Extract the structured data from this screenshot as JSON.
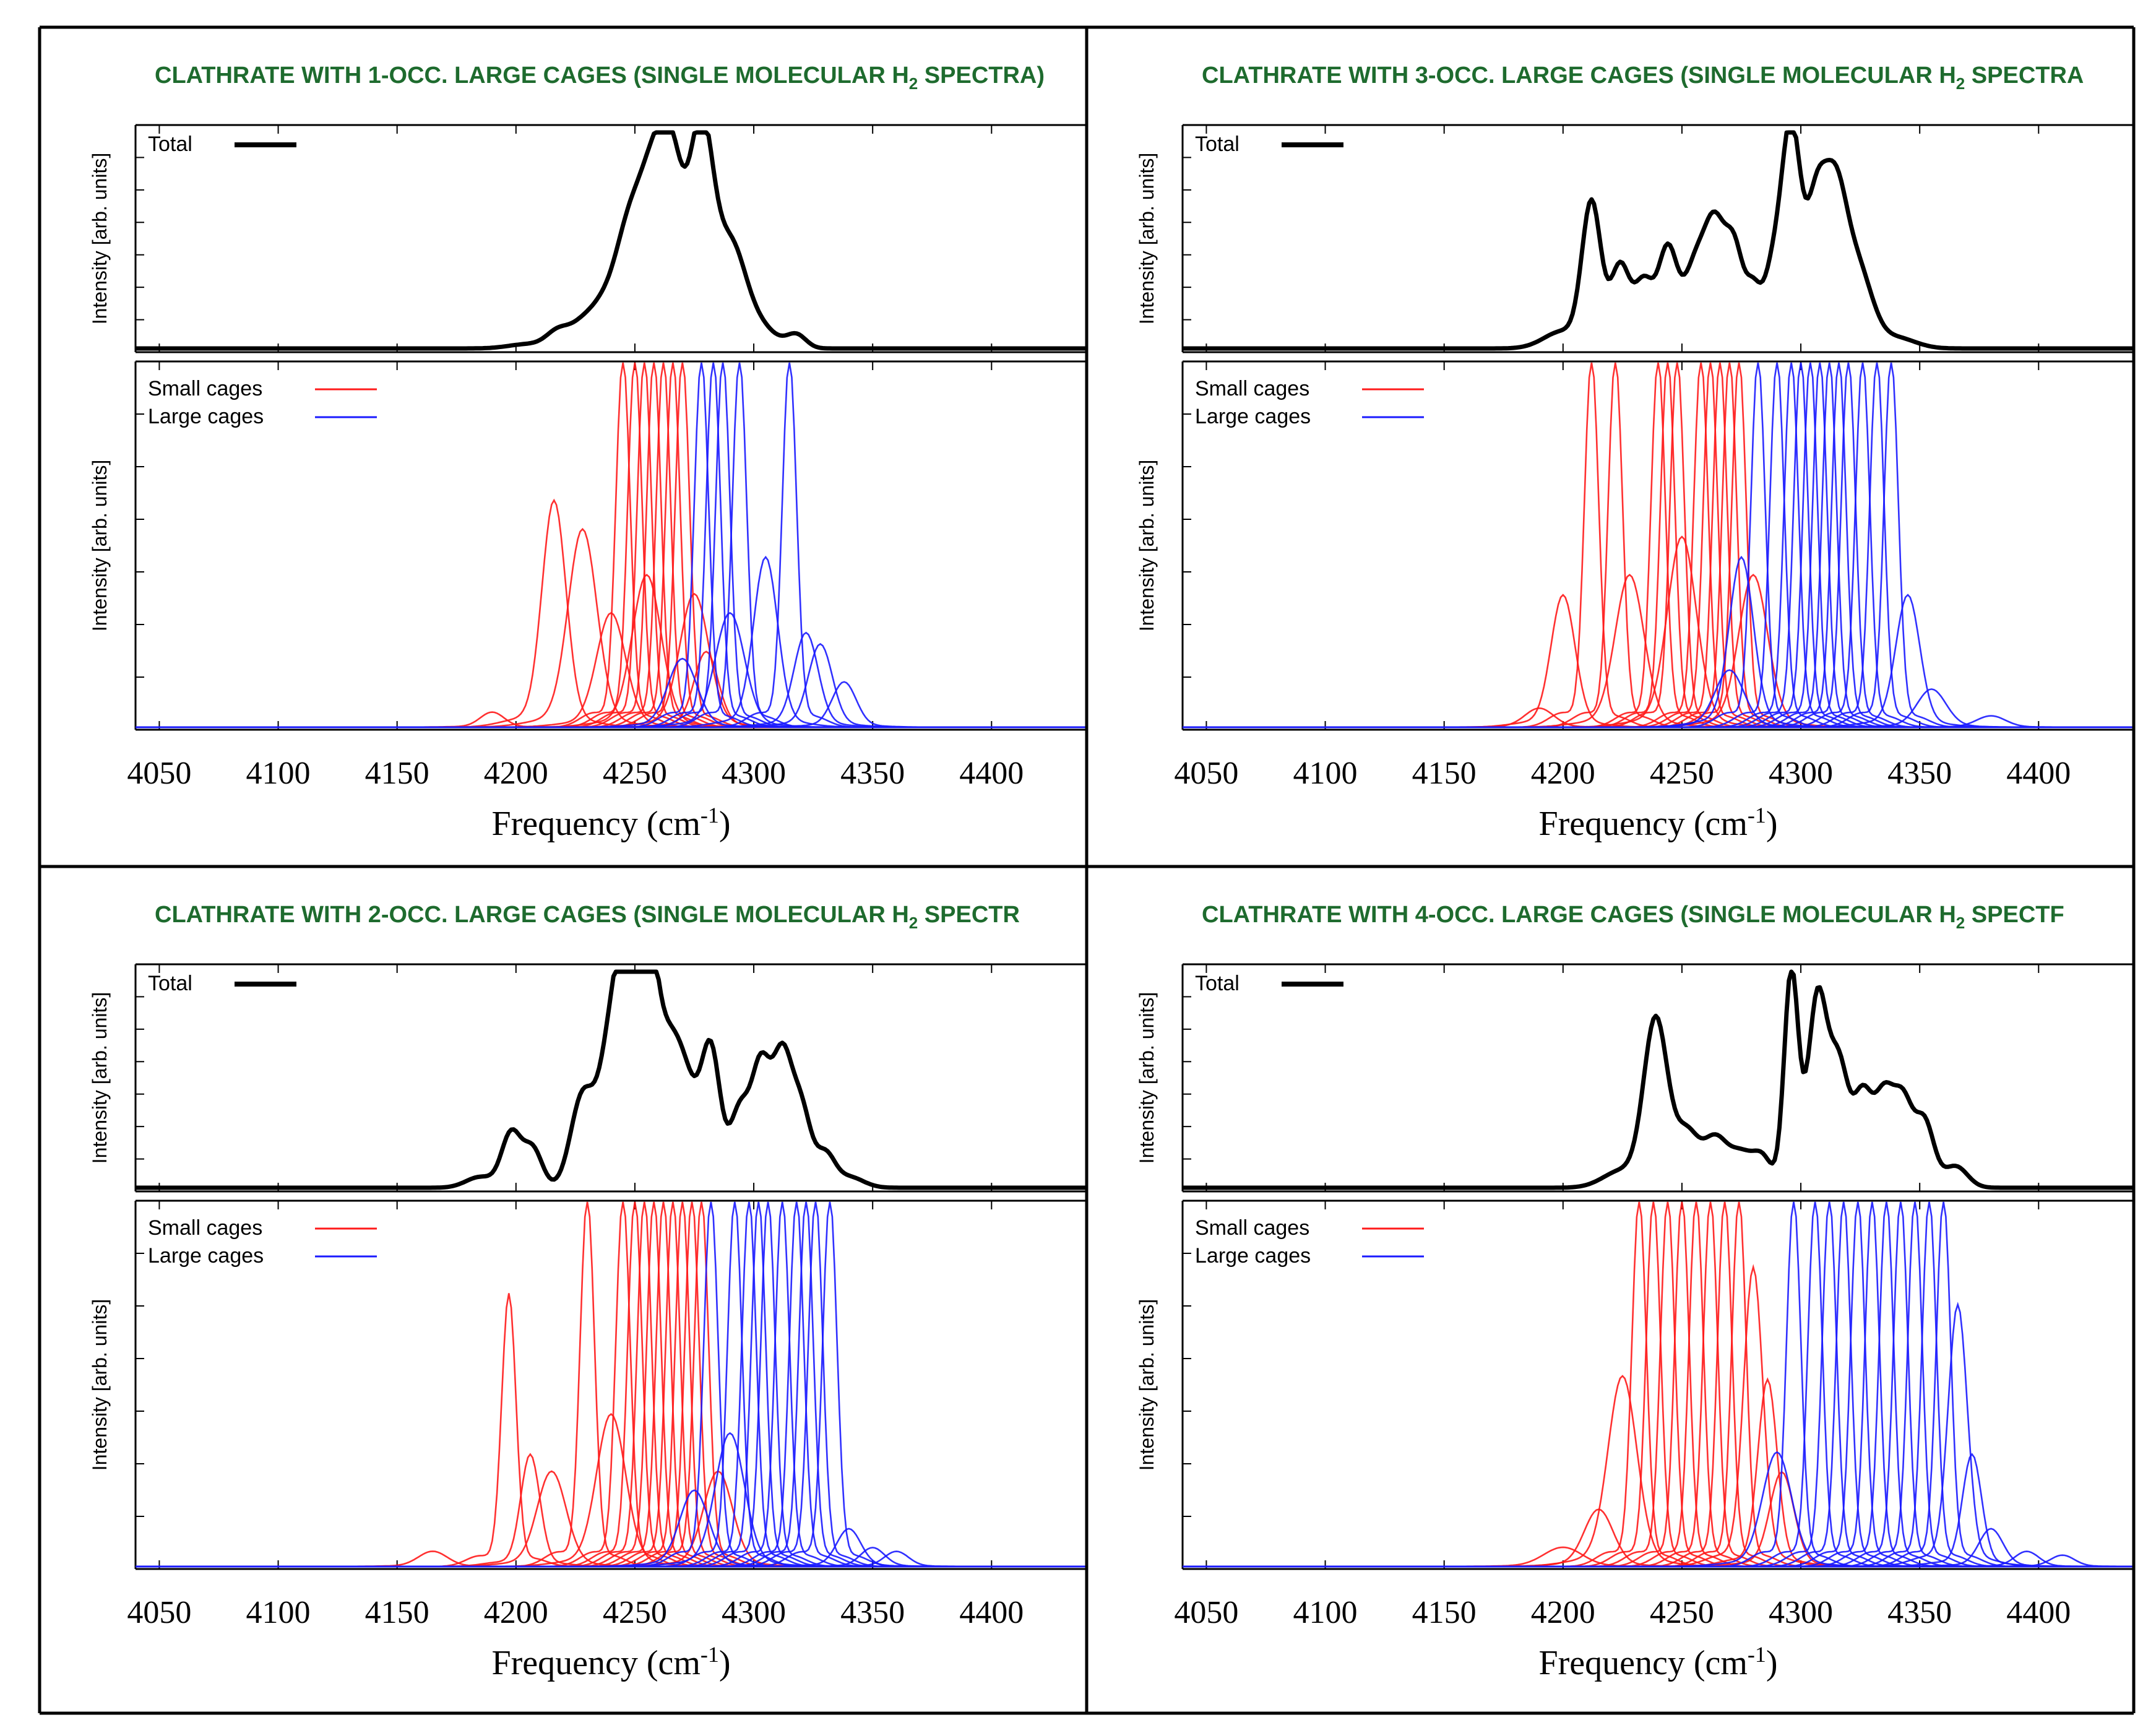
{
  "colors": {
    "total": "#000000",
    "small": "#ff1a1a",
    "large": "#1a1aff",
    "title": "#1e6b2e",
    "frame": "#000000"
  },
  "common": {
    "ylabel": "Intensity [arb. units]",
    "xlabel_main": "Frequency (cm",
    "xlabel_sup": "-1",
    "xlabel_close": ")",
    "legend_total": "Total",
    "legend_small": "Small cages",
    "legend_large": "Large cages",
    "xticks": [
      4050,
      4100,
      4150,
      4200,
      4250,
      4300,
      4350,
      4400
    ]
  },
  "chart_data": [
    {
      "type": "line",
      "panel": "top-left",
      "title": "CLATHRATE WITH 1-OCC. LARGE CAGES (SINGLE MOLECULAR H",
      "title_sub": "2",
      "title_tail": " SPECTRA)",
      "xlabel": "Frequency (cm-1)",
      "ylabel": "Intensity [arb. units]",
      "xlim": [
        4040,
        4440
      ],
      "ylim": [
        0,
        1
      ],
      "grid": false,
      "legend_position": "top-left",
      "series": [
        {
          "name": "Total",
          "role": "total",
          "peaks": [
            [
              4205,
              0.02,
              8
            ],
            [
              4218,
              0.08,
              5
            ],
            [
              4228,
              0.1,
              5
            ],
            [
              4236,
              0.14,
              5
            ],
            [
              4247,
              0.5,
              6
            ],
            [
              4258,
              0.72,
              6
            ],
            [
              4266,
              0.65,
              5
            ],
            [
              4278,
              1.0,
              5
            ],
            [
              4290,
              0.42,
              6
            ],
            [
              4300,
              0.12,
              8
            ],
            [
              4318,
              0.06,
              4
            ]
          ]
        },
        {
          "name": "Small cages",
          "role": "small",
          "peaks": [
            [
              4216,
              0.6,
              5
            ],
            [
              4228,
              0.52,
              6
            ],
            [
              4190,
              0.04,
              5
            ],
            [
              4245,
              1.0,
              3
            ],
            [
              4250,
              1.0,
              3
            ],
            [
              4254,
              1.0,
              3
            ],
            [
              4258,
              1.0,
              3
            ],
            [
              4262,
              1.0,
              3
            ],
            [
              4266,
              1.0,
              3
            ],
            [
              4270,
              1.0,
              3
            ],
            [
              4240,
              0.3,
              6
            ],
            [
              4255,
              0.4,
              6
            ],
            [
              4275,
              0.35,
              6
            ],
            [
              4280,
              0.2,
              5
            ]
          ]
        },
        {
          "name": "Large cages",
          "role": "large",
          "peaks": [
            [
              4278,
              1.0,
              3
            ],
            [
              4283,
              1.0,
              3
            ],
            [
              4287,
              1.0,
              3
            ],
            [
              4294,
              1.0,
              3
            ],
            [
              4315,
              1.0,
              3
            ],
            [
              4305,
              0.45,
              5
            ],
            [
              4322,
              0.25,
              5
            ],
            [
              4328,
              0.22,
              5
            ],
            [
              4338,
              0.12,
              5
            ],
            [
              4290,
              0.3,
              6
            ],
            [
              4270,
              0.18,
              6
            ]
          ]
        }
      ]
    },
    {
      "type": "line",
      "panel": "top-right",
      "title": "CLATHRATE WITH 3-OCC. LARGE CAGES (SINGLE MOLECULAR H",
      "title_sub": "2",
      "title_tail": " SPECTRA",
      "xlabel": "Frequency (cm-1)",
      "ylabel": "Intensity [arb. units]",
      "xlim": [
        4040,
        4440
      ],
      "ylim": [
        0,
        1
      ],
      "grid": false,
      "legend_position": "top-left",
      "series": [
        {
          "name": "Total",
          "role": "total",
          "peaks": [
            [
              4200,
              0.08,
              8
            ],
            [
              4212,
              0.66,
              4
            ],
            [
              4224,
              0.38,
              4
            ],
            [
              4234,
              0.3,
              4
            ],
            [
              4244,
              0.45,
              4
            ],
            [
              4256,
              0.4,
              5
            ],
            [
              4264,
              0.46,
              4
            ],
            [
              4272,
              0.46,
              4
            ],
            [
              4280,
              0.22,
              3
            ],
            [
              4288,
              0.34,
              4
            ],
            [
              4296,
              1.0,
              4
            ],
            [
              4306,
              0.55,
              4
            ],
            [
              4314,
              0.7,
              5
            ],
            [
              4324,
              0.35,
              6
            ],
            [
              4340,
              0.05,
              8
            ]
          ]
        },
        {
          "name": "Small cages",
          "role": "small",
          "peaks": [
            [
              4212,
              1.0,
              3
            ],
            [
              4222,
              1.0,
              3
            ],
            [
              4240,
              1.0,
              3
            ],
            [
              4244,
              1.0,
              3
            ],
            [
              4248,
              1.0,
              3
            ],
            [
              4258,
              1.0,
              3
            ],
            [
              4262,
              1.0,
              3
            ],
            [
              4266,
              1.0,
              3
            ],
            [
              4270,
              1.0,
              3
            ],
            [
              4274,
              1.0,
              3
            ],
            [
              4200,
              0.35,
              5
            ],
            [
              4228,
              0.4,
              6
            ],
            [
              4250,
              0.5,
              6
            ],
            [
              4280,
              0.4,
              6
            ],
            [
              4190,
              0.05,
              6
            ]
          ]
        },
        {
          "name": "Large cages",
          "role": "large",
          "peaks": [
            [
              4282,
              1.0,
              3
            ],
            [
              4290,
              1.0,
              3
            ],
            [
              4296,
              1.0,
              3
            ],
            [
              4300,
              1.0,
              3
            ],
            [
              4304,
              1.0,
              3
            ],
            [
              4308,
              1.0,
              3
            ],
            [
              4312,
              1.0,
              3
            ],
            [
              4316,
              1.0,
              3
            ],
            [
              4320,
              1.0,
              3
            ],
            [
              4326,
              1.0,
              3
            ],
            [
              4332,
              1.0,
              3
            ],
            [
              4338,
              1.0,
              3
            ],
            [
              4275,
              0.45,
              5
            ],
            [
              4345,
              0.35,
              5
            ],
            [
              4355,
              0.1,
              6
            ],
            [
              4380,
              0.03,
              6
            ],
            [
              4270,
              0.15,
              6
            ]
          ]
        }
      ]
    },
    {
      "type": "line",
      "panel": "bottom-left",
      "title": "CLATHRATE WITH 2-OCC. LARGE CAGES (SINGLE MOLECULAR H",
      "title_sub": "2",
      "title_tail": " SPECTR",
      "xlabel": "Frequency (cm-1)",
      "ylabel": "Intensity [arb. units]",
      "xlim": [
        4040,
        4440
      ],
      "ylim": [
        0,
        1
      ],
      "grid": false,
      "legend_position": "top-left",
      "series": [
        {
          "name": "Total",
          "role": "total",
          "peaks": [
            [
              4185,
              0.05,
              6
            ],
            [
              4198,
              0.25,
              4
            ],
            [
              4207,
              0.18,
              4
            ],
            [
              4228,
              0.42,
              5
            ],
            [
              4240,
              0.6,
              5
            ],
            [
              4248,
              1.0,
              5
            ],
            [
              4256,
              0.8,
              4
            ],
            [
              4264,
              0.55,
              5
            ],
            [
              4272,
              0.4,
              5
            ],
            [
              4282,
              0.62,
              4
            ],
            [
              4294,
              0.35,
              4
            ],
            [
              4303,
              0.55,
              4
            ],
            [
              4312,
              0.58,
              4
            ],
            [
              4320,
              0.35,
              4
            ],
            [
              4330,
              0.15,
              4
            ],
            [
              4340,
              0.05,
              6
            ]
          ]
        },
        {
          "name": "Small cages",
          "role": "small",
          "peaks": [
            [
              4197,
              0.74,
              3
            ],
            [
              4206,
              0.3,
              4
            ],
            [
              4230,
              1.0,
              3
            ],
            [
              4245,
              1.0,
              3
            ],
            [
              4250,
              1.0,
              3
            ],
            [
              4254,
              1.0,
              3
            ],
            [
              4258,
              1.0,
              3
            ],
            [
              4262,
              1.0,
              3
            ],
            [
              4266,
              1.0,
              3
            ],
            [
              4270,
              1.0,
              3
            ],
            [
              4274,
              1.0,
              3
            ],
            [
              4278,
              1.0,
              3
            ],
            [
              4165,
              0.04,
              6
            ],
            [
              4215,
              0.25,
              6
            ],
            [
              4240,
              0.4,
              6
            ],
            [
              4285,
              0.25,
              6
            ]
          ]
        },
        {
          "name": "Large cages",
          "role": "large",
          "peaks": [
            [
              4282,
              1.0,
              3
            ],
            [
              4292,
              1.0,
              3
            ],
            [
              4298,
              1.0,
              3
            ],
            [
              4302,
              1.0,
              3
            ],
            [
              4306,
              1.0,
              3
            ],
            [
              4312,
              1.0,
              3
            ],
            [
              4318,
              1.0,
              3
            ],
            [
              4322,
              1.0,
              3
            ],
            [
              4326,
              1.0,
              3
            ],
            [
              4332,
              1.0,
              3
            ],
            [
              4340,
              0.1,
              5
            ],
            [
              4350,
              0.05,
              5
            ],
            [
              4360,
              0.04,
              5
            ],
            [
              4290,
              0.35,
              6
            ],
            [
              4275,
              0.2,
              6
            ]
          ]
        }
      ]
    },
    {
      "type": "line",
      "panel": "bottom-right",
      "title": "CLATHRATE WITH 4-OCC. LARGE CAGES (SINGLE MOLECULAR H",
      "title_sub": "2",
      "title_tail": " SPECTF",
      "xlabel": "Frequency (cm-1)",
      "ylabel": "Intensity [arb. units]",
      "xlim": [
        4040,
        4440
      ],
      "ylim": [
        0,
        1
      ],
      "grid": false,
      "legend_position": "top-left",
      "series": [
        {
          "name": "Total",
          "role": "total",
          "peaks": [
            [
              4225,
              0.08,
              8
            ],
            [
              4239,
              0.77,
              5
            ],
            [
              4252,
              0.25,
              5
            ],
            [
              4264,
              0.22,
              5
            ],
            [
              4275,
              0.15,
              5
            ],
            [
              4284,
              0.13,
              4
            ],
            [
              4296,
              1.0,
              3
            ],
            [
              4307,
              0.88,
              4
            ],
            [
              4316,
              0.55,
              4
            ],
            [
              4326,
              0.42,
              4
            ],
            [
              4335,
              0.4,
              4
            ],
            [
              4343,
              0.38,
              4
            ],
            [
              4352,
              0.3,
              4
            ],
            [
              4365,
              0.1,
              5
            ]
          ]
        },
        {
          "name": "Small cages",
          "role": "small",
          "peaks": [
            [
              4232,
              1.0,
              3
            ],
            [
              4238,
              1.0,
              3
            ],
            [
              4244,
              1.0,
              3
            ],
            [
              4250,
              1.0,
              3
            ],
            [
              4256,
              1.0,
              3
            ],
            [
              4262,
              1.0,
              3
            ],
            [
              4268,
              1.0,
              3
            ],
            [
              4274,
              1.0,
              3
            ],
            [
              4280,
              0.8,
              4
            ],
            [
              4286,
              0.5,
              4
            ],
            [
              4215,
              0.15,
              6
            ],
            [
              4225,
              0.5,
              6
            ],
            [
              4200,
              0.05,
              8
            ],
            [
              4292,
              0.25,
              5
            ]
          ]
        },
        {
          "name": "Large cages",
          "role": "large",
          "peaks": [
            [
              4297,
              1.0,
              3
            ],
            [
              4306,
              1.0,
              3
            ],
            [
              4312,
              1.0,
              3
            ],
            [
              4318,
              1.0,
              3
            ],
            [
              4324,
              1.0,
              3
            ],
            [
              4330,
              1.0,
              3
            ],
            [
              4336,
              1.0,
              3
            ],
            [
              4342,
              1.0,
              3
            ],
            [
              4348,
              1.0,
              3
            ],
            [
              4354,
              1.0,
              3
            ],
            [
              4360,
              1.0,
              3
            ],
            [
              4366,
              0.7,
              4
            ],
            [
              4372,
              0.3,
              4
            ],
            [
              4380,
              0.1,
              5
            ],
            [
              4395,
              0.04,
              5
            ],
            [
              4410,
              0.03,
              5
            ],
            [
              4290,
              0.3,
              6
            ]
          ]
        }
      ]
    }
  ]
}
